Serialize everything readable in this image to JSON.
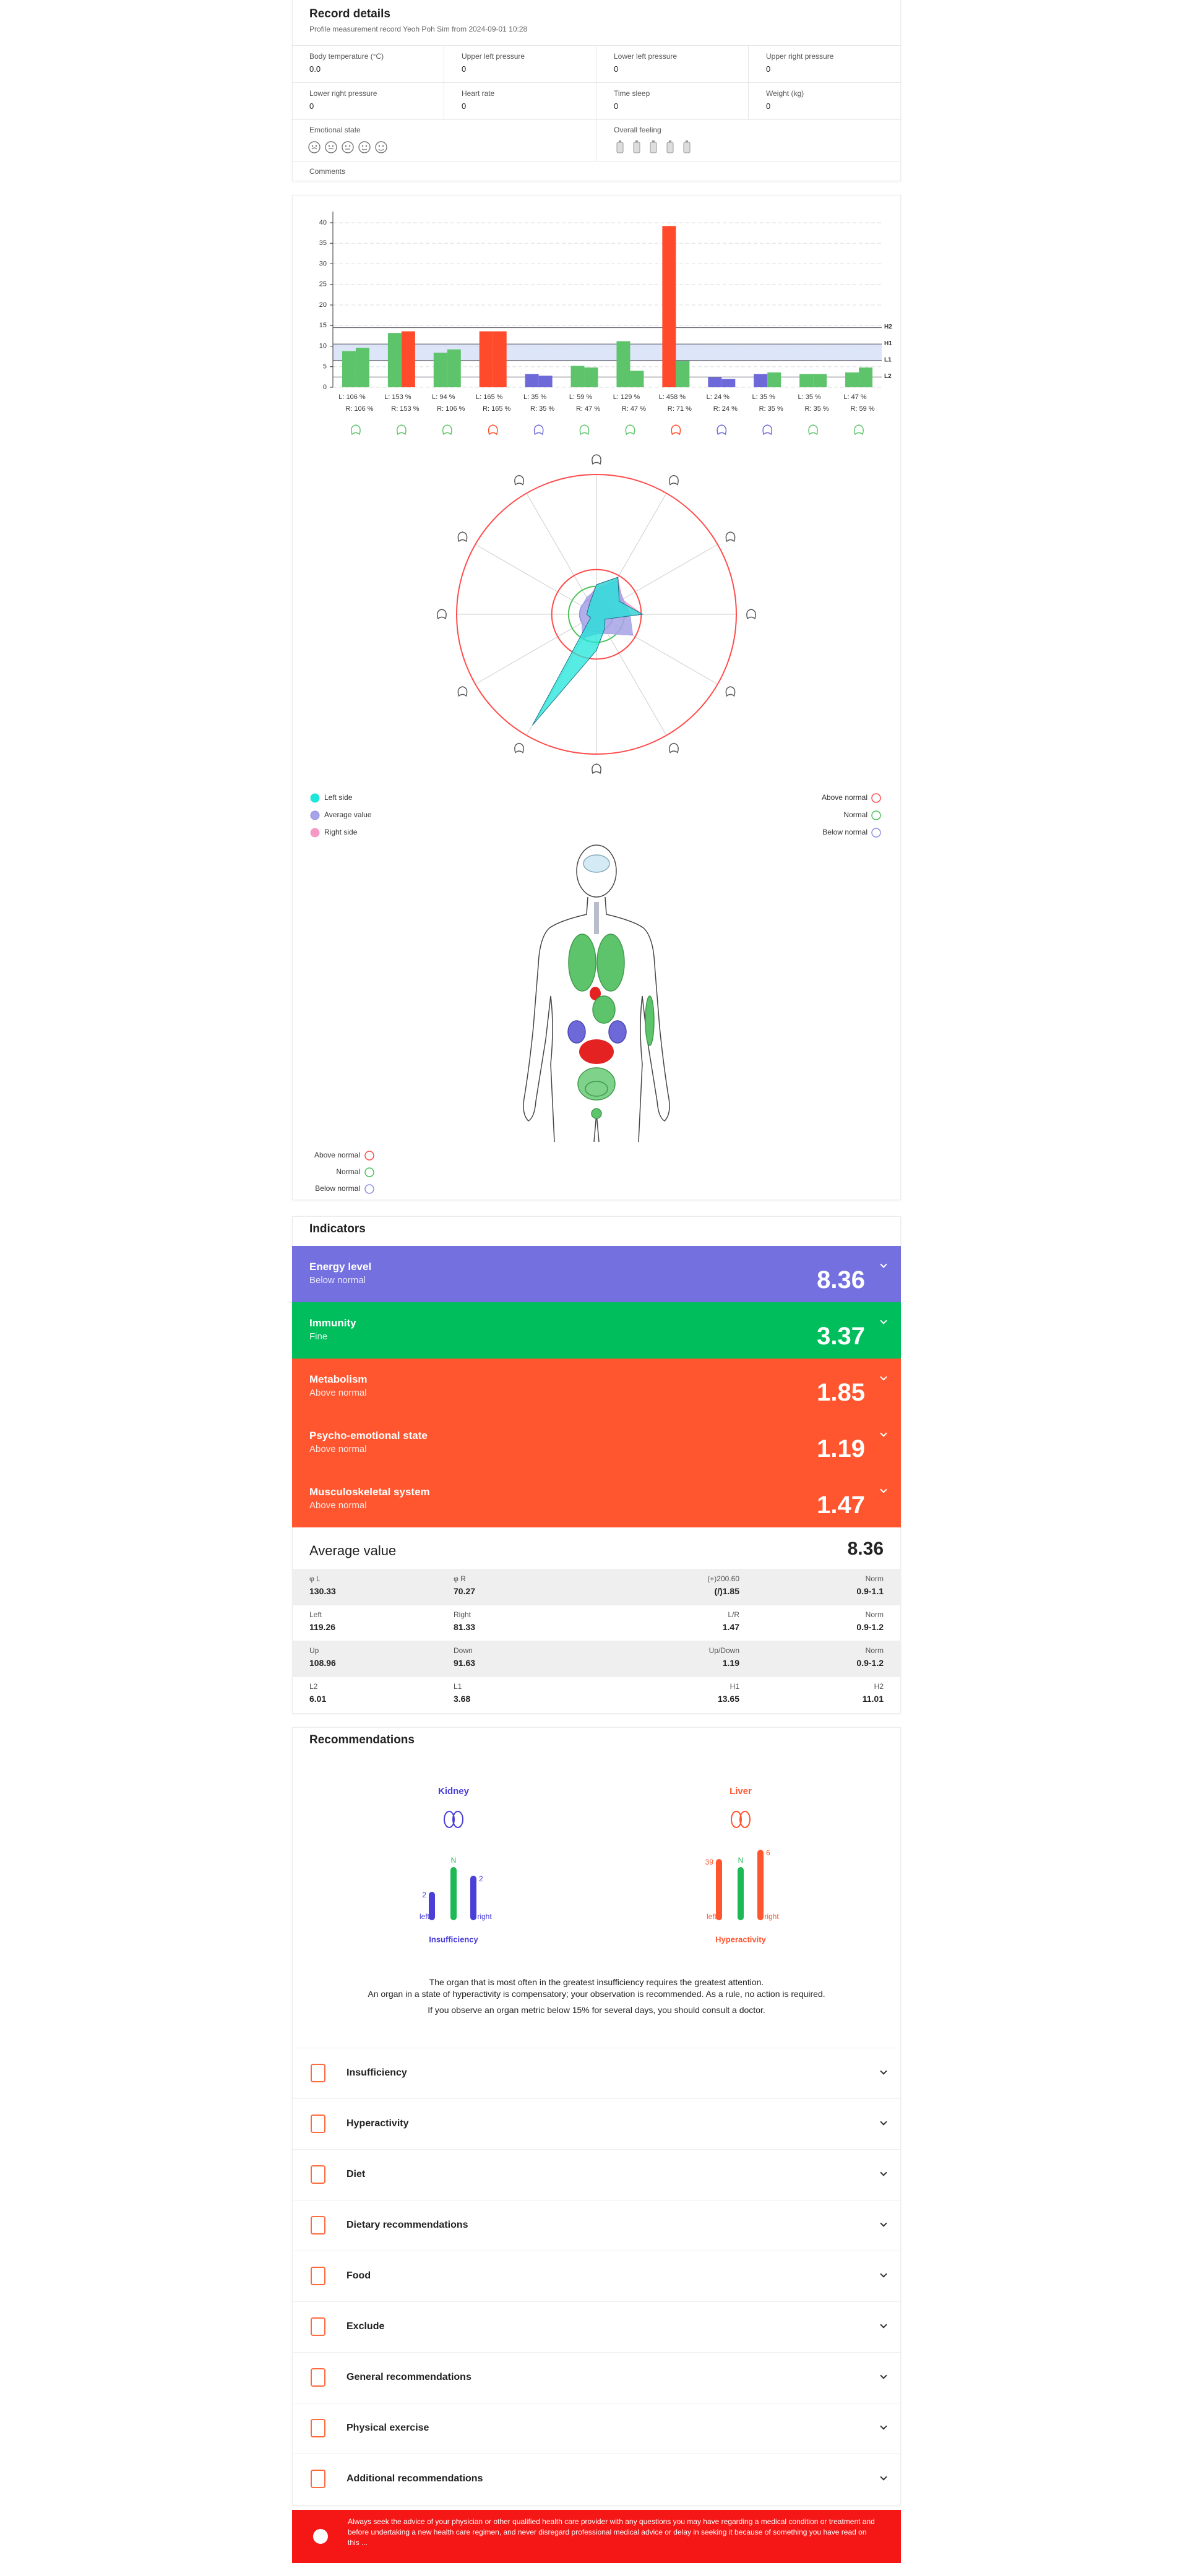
{
  "record": {
    "title": "Record details",
    "subtitle": "Profile measurement record Yeoh Poh Sim from 2024-09-01 10:28",
    "fields": [
      {
        "label": "Body temperature (°C)",
        "value": "0.0"
      },
      {
        "label": "Upper left pressure",
        "value": "0"
      },
      {
        "label": "Lower left pressure",
        "value": "0"
      },
      {
        "label": "Upper right pressure",
        "value": "0"
      },
      {
        "label": "Lower right pressure",
        "value": "0"
      },
      {
        "label": "Heart rate",
        "value": "0"
      },
      {
        "label": "Time sleep",
        "value": "0"
      },
      {
        "label": "Weight (kg)",
        "value": "0"
      }
    ],
    "emotional_state": "Emotional state",
    "overall_feeling": "Overall feeling",
    "comments": "Comments"
  },
  "chart_data": [
    {
      "type": "bar",
      "ylim": [
        0,
        40
      ],
      "yticks": [
        0,
        5,
        10,
        15,
        20,
        25,
        30,
        35,
        40
      ],
      "grid": true,
      "series": [
        {
          "values": [
            8.8,
            13.2,
            8.4,
            13.6,
            3.2,
            5.2,
            11.2,
            39.2,
            2.4,
            3.2,
            3.2,
            3.6
          ],
          "colors": [
            "#5ec46b",
            "#5ec46b",
            "#5ec46b",
            "#ff4b2b",
            "#6d69d9",
            "#5ec46b",
            "#5ec46b",
            "#ff4b2b",
            "#6d69d9",
            "#6d69d9",
            "#5ec46b",
            "#5ec46b"
          ]
        },
        {
          "values": [
            9.6,
            13.6,
            9.2,
            13.6,
            2.8,
            4.8,
            4,
            6.4,
            2,
            3.6,
            3.2,
            4.8
          ],
          "colors": [
            "#5ec46b",
            "#ff4b2b",
            "#5ec46b",
            "#ff4b2b",
            "#6d69d9",
            "#5ec46b",
            "#5ec46b",
            "#5ec46b",
            "#6d69d9",
            "#5ec46b",
            "#5ec46b",
            "#5ec46b"
          ]
        }
      ],
      "left_labels": [
        "L: 106 %",
        "L: 153 %",
        "L: 94 %",
        "L: 165 %",
        "L: 35 %",
        "L: 59 %",
        "L: 129 %",
        "L: 458 %",
        "L: 24 %",
        "L: 35 %",
        "L: 35 %",
        "L: 47 %"
      ],
      "right_labels": [
        "R: 106 %",
        "R: 153 %",
        "R: 106 %",
        "R: 165 %",
        "R: 35 %",
        "R: 47 %",
        "R: 47 %",
        "R: 71 %",
        "R: 24 %",
        "R: 35 %",
        "R: 35 %",
        "R: 59 %"
      ],
      "reference_lines": [
        {
          "label": "H2",
          "value": 14.5
        },
        {
          "label": "H1",
          "value": 10.5
        },
        {
          "label": "L1",
          "value": 6.5
        },
        {
          "label": "L2",
          "value": 2.5
        }
      ]
    },
    {
      "type": "radar",
      "rlim": [
        0,
        500
      ],
      "outer_color": "#ff4b4b",
      "series": [
        {
          "name": "Left side",
          "color": "#1ee6d9",
          "values": [
            106,
            153,
            94,
            165,
            35,
            59,
            129,
            458,
            24,
            35,
            35,
            47
          ]
        },
        {
          "name": "Average value",
          "color": "#a7a3e6",
          "values": [
            90,
            140,
            110,
            120,
            150,
            80,
            70,
            100,
            60,
            60,
            60,
            70
          ]
        },
        {
          "name": "Right side",
          "color": "#f59ac7",
          "values": [
            106,
            153,
            106,
            165,
            35,
            47,
            47,
            71,
            24,
            35,
            35,
            59
          ]
        }
      ],
      "rings": [
        {
          "label": "Above normal",
          "color": "#ff4b4b",
          "value": 160
        },
        {
          "label": "Normal",
          "color": "#4cc25a",
          "value": 100
        },
        {
          "label": "Below normal",
          "color": "#8f8fe6",
          "value": 60
        }
      ]
    }
  ],
  "body_legend": [
    "Above normal",
    "Normal",
    "Below normal"
  ],
  "indicators": {
    "title": "Indicators",
    "items": [
      {
        "name": "Energy level",
        "status": "Below normal",
        "value": 8.36,
        "color": "#7470df"
      },
      {
        "name": "Immunity",
        "status": "Fine",
        "value": 3.37,
        "color": "#00be5c"
      },
      {
        "name": "Metabolism",
        "status": "Above normal",
        "value": 1.85,
        "color": "#ff5630"
      },
      {
        "name": "Psycho-emotional state",
        "status": "Above normal",
        "value": 1.19,
        "color": "#ff5630"
      },
      {
        "name": "Musculoskeletal system",
        "status": "Above normal",
        "value": 1.47,
        "color": "#ff5630"
      }
    ]
  },
  "average": {
    "label": "Average value",
    "value": 8.36,
    "rows": [
      [
        {
          "label": "φ L",
          "value": 130.33
        },
        {
          "label": "φ R",
          "value": 70.27
        },
        {
          "label": "(+)200.60",
          "value": "(/)1.85"
        },
        {
          "label": "Norm",
          "value": "0.9-1.1"
        }
      ],
      [
        {
          "label": "Left",
          "value": 119.26
        },
        {
          "label": "Right",
          "value": 81.33
        },
        {
          "label": "L/R",
          "value": 1.47
        },
        {
          "label": "Norm",
          "value": "0.9-1.2"
        }
      ],
      [
        {
          "label": "Up",
          "value": 108.96
        },
        {
          "label": "Down",
          "value": 91.63
        },
        {
          "label": "Up/Down",
          "value": 1.19
        },
        {
          "label": "Norm",
          "value": "0.9-1.2"
        }
      ],
      [
        {
          "label": "L2",
          "value": 6.01
        },
        {
          "label": "L1",
          "value": 3.68
        },
        {
          "label": "H1",
          "value": 13.65
        },
        {
          "label": "H2",
          "value": 11.01
        }
      ]
    ]
  },
  "recommendations": {
    "title": "Recommendations",
    "organs": [
      {
        "name": "Kidney",
        "color": "#4a3fd6",
        "left": 2,
        "norm": "N",
        "right": 2,
        "left_text": "left",
        "right_text": "right",
        "state": "Insufficiency"
      },
      {
        "name": "Liver",
        "color": "#ff5630",
        "left": 39,
        "norm": "N",
        "right": 6,
        "left_text": "left",
        "right_text": "right",
        "state": "Hyperactivity"
      }
    ],
    "notes": [
      "The organ that is most often in the greatest insufficiency requires the greatest attention.",
      "An organ in a state of hyperactivity is compensatory; your observation is recommended. As a rule, no action is required.",
      "If you observe an organ metric below 15% for several days, you should consult a doctor."
    ],
    "sections": [
      "Insufficiency",
      "Hyperactivity",
      "Diet",
      "Dietary recommendations",
      "Food",
      "Exclude",
      "General recommendations",
      "Physical exercise",
      "Additional recommendations"
    ]
  },
  "disclaimer": "Always seek the advice of your physician or other qualified health care provider with any questions you may have regarding a medical condition or treatment and before undertaking a new health care regimen, and never disregard professional medical advice or delay in seeking it because of something you have read on this ..."
}
